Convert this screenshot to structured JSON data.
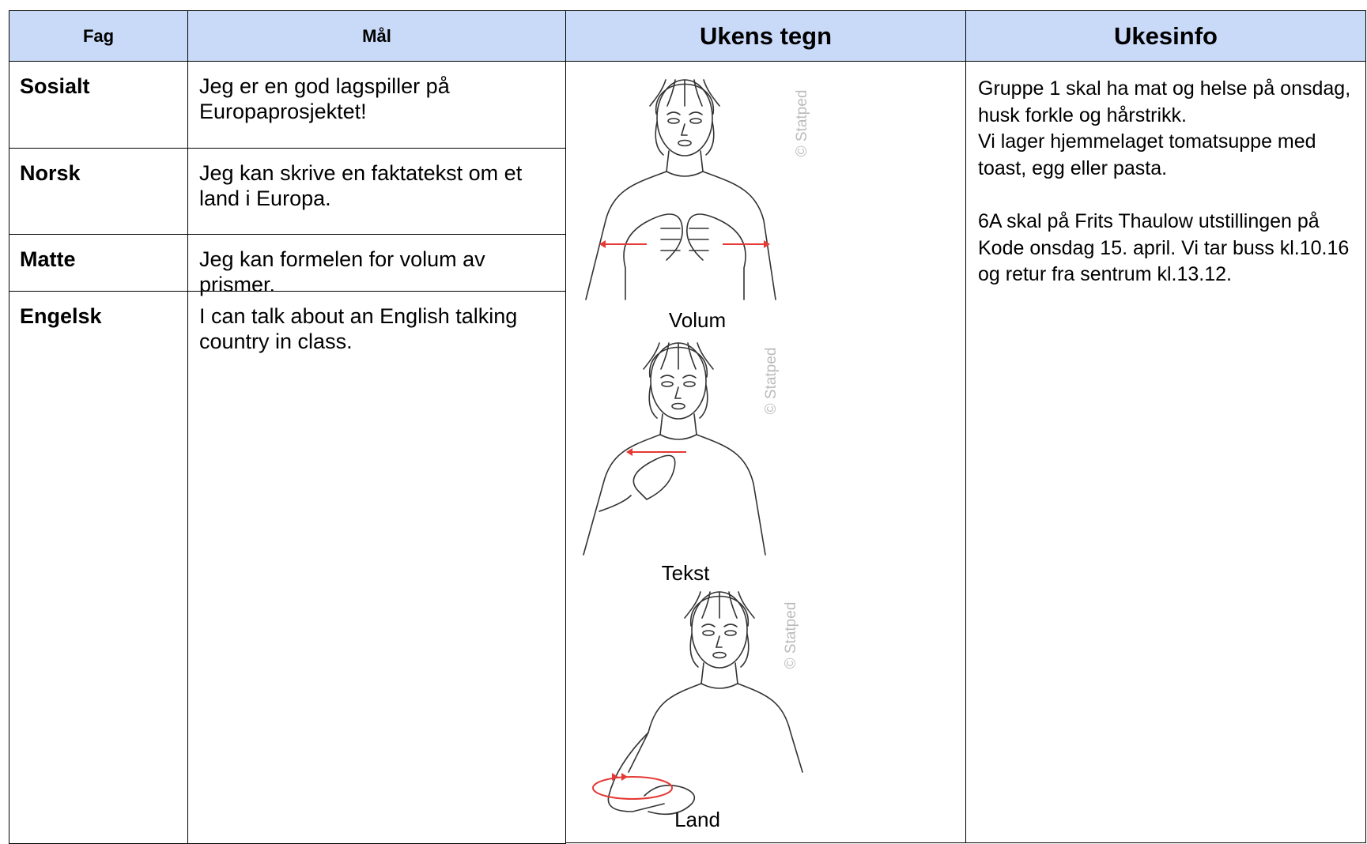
{
  "table": {
    "headers": [
      "Fag",
      "Mål",
      "Ukens tegn",
      "Ukesinfo"
    ],
    "rows": [
      [
        "Sosialt",
        "Jeg er en god lagspiller på Europaprosjektet!"
      ],
      [
        "Norsk",
        "Jeg kan skrive en faktatekst om et land i Europa."
      ],
      [
        "Matte",
        "Jeg kan formelen for volum av prismer."
      ],
      [
        "Engelsk",
        "I can talk about an English talking country in class."
      ]
    ]
  },
  "signs": [
    {
      "label": "Volum",
      "watermark": "© Statped"
    },
    {
      "label": "Tekst",
      "watermark": "© Statped"
    },
    {
      "label": "Land",
      "watermark": "© Statped"
    }
  ],
  "info": [
    [
      "Gruppe 1 skal ha mat og helse på onsdag, husk forkle og hårstrikk.",
      "Vi lager hjemmelaget tomatsuppe med toast, egg eller pasta."
    ],
    [
      "6A skal på Frits Thaulow utstillingen på Kode onsdag 15. april. Vi tar buss kl.10.16 og retur fra sentrum kl.13.12."
    ]
  ]
}
